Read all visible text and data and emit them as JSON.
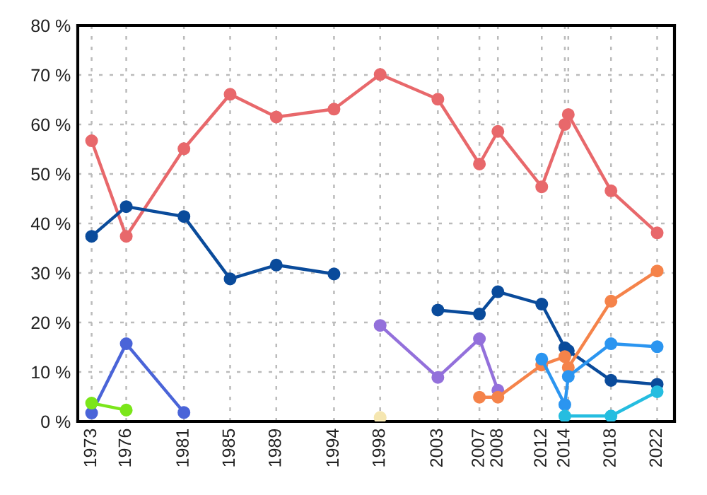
{
  "chart_data": {
    "type": "line",
    "marker": "circle",
    "line_style": "solid",
    "grid": true,
    "xlim": [
      1971.8,
      2023.5
    ],
    "ylim": [
      0,
      80
    ],
    "xticks": [
      1973,
      1976,
      1981,
      1985,
      1989,
      1994,
      1998,
      2003,
      {
        "value": 2006.6,
        "label": "2007"
      },
      {
        "value": 2008.2,
        "label": "2008"
      },
      2012,
      2014,
      {
        "value": 2014.3,
        "label": null
      },
      2018,
      2022
    ],
    "yticks": [
      {
        "value": 0,
        "label": "0 %"
      },
      {
        "value": 10,
        "label": "10 %"
      },
      {
        "value": 20,
        "label": "20 %"
      },
      {
        "value": 30,
        "label": "30 %"
      },
      {
        "value": 40,
        "label": "40 %"
      },
      {
        "value": 50,
        "label": "50 %"
      },
      {
        "value": 60,
        "label": "60 %"
      },
      {
        "value": 70,
        "label": "70 %"
      },
      {
        "value": 80,
        "label": "80 %"
      }
    ],
    "series": [
      {
        "color": "#e8686b",
        "x": [
          1973,
          1976,
          1981,
          1985,
          1989,
          1994,
          1998,
          2003,
          2006.6,
          2008.2,
          2012,
          2014,
          2014.3,
          2018,
          2022
        ],
        "values": [
          56.7,
          37.4,
          55.1,
          66.1,
          61.5,
          63.1,
          70.1,
          65.1,
          52.0,
          58.6,
          47.4,
          60.0,
          62.0,
          46.6,
          38.1
        ]
      },
      {
        "color": "#0a4b9b",
        "x": [
          1973,
          1976,
          1981,
          1985,
          1989,
          1994
        ],
        "values": [
          37.4,
          43.4,
          41.4,
          28.8,
          31.6,
          29.8
        ]
      },
      {
        "color": "#0a4b9b",
        "x": [
          2003,
          2006.6,
          2008.2,
          2012,
          2014,
          2014.3,
          2018,
          2022
        ],
        "values": [
          22.5,
          21.7,
          26.2,
          23.7,
          14.9,
          14.3,
          8.3,
          7.5
        ]
      },
      {
        "color": "#4a64d8",
        "x": [
          1973,
          1976,
          1981
        ],
        "values": [
          1.7,
          15.7,
          1.8
        ]
      },
      {
        "color": "#7be61a",
        "x": [
          1973,
          1976
        ],
        "values": [
          3.7,
          2.3
        ]
      },
      {
        "color": "#9370db",
        "x": [
          1998,
          2003,
          2006.6,
          2008.2
        ],
        "values": [
          19.4,
          8.9,
          16.7,
          6.3
        ]
      },
      {
        "color": "#f5e6b0",
        "x": [
          1998
        ],
        "values": [
          0.8
        ]
      },
      {
        "color": "#f5834a",
        "x": [
          2006.6,
          2008.2,
          2012,
          2014,
          2014.3,
          2018,
          2022
        ],
        "values": [
          4.9,
          4.9,
          11.4,
          13.1,
          10.9,
          24.3,
          30.4
        ]
      },
      {
        "color": "#2b95f0",
        "x": [
          2012,
          2014,
          2014.3,
          2018,
          2022
        ],
        "values": [
          12.6,
          3.4,
          9.1,
          15.7,
          15.1
        ]
      },
      {
        "color": "#25bde0",
        "x": [
          2014,
          2018,
          2022
        ],
        "values": [
          1.1,
          1.1,
          6.0
        ]
      }
    ]
  }
}
